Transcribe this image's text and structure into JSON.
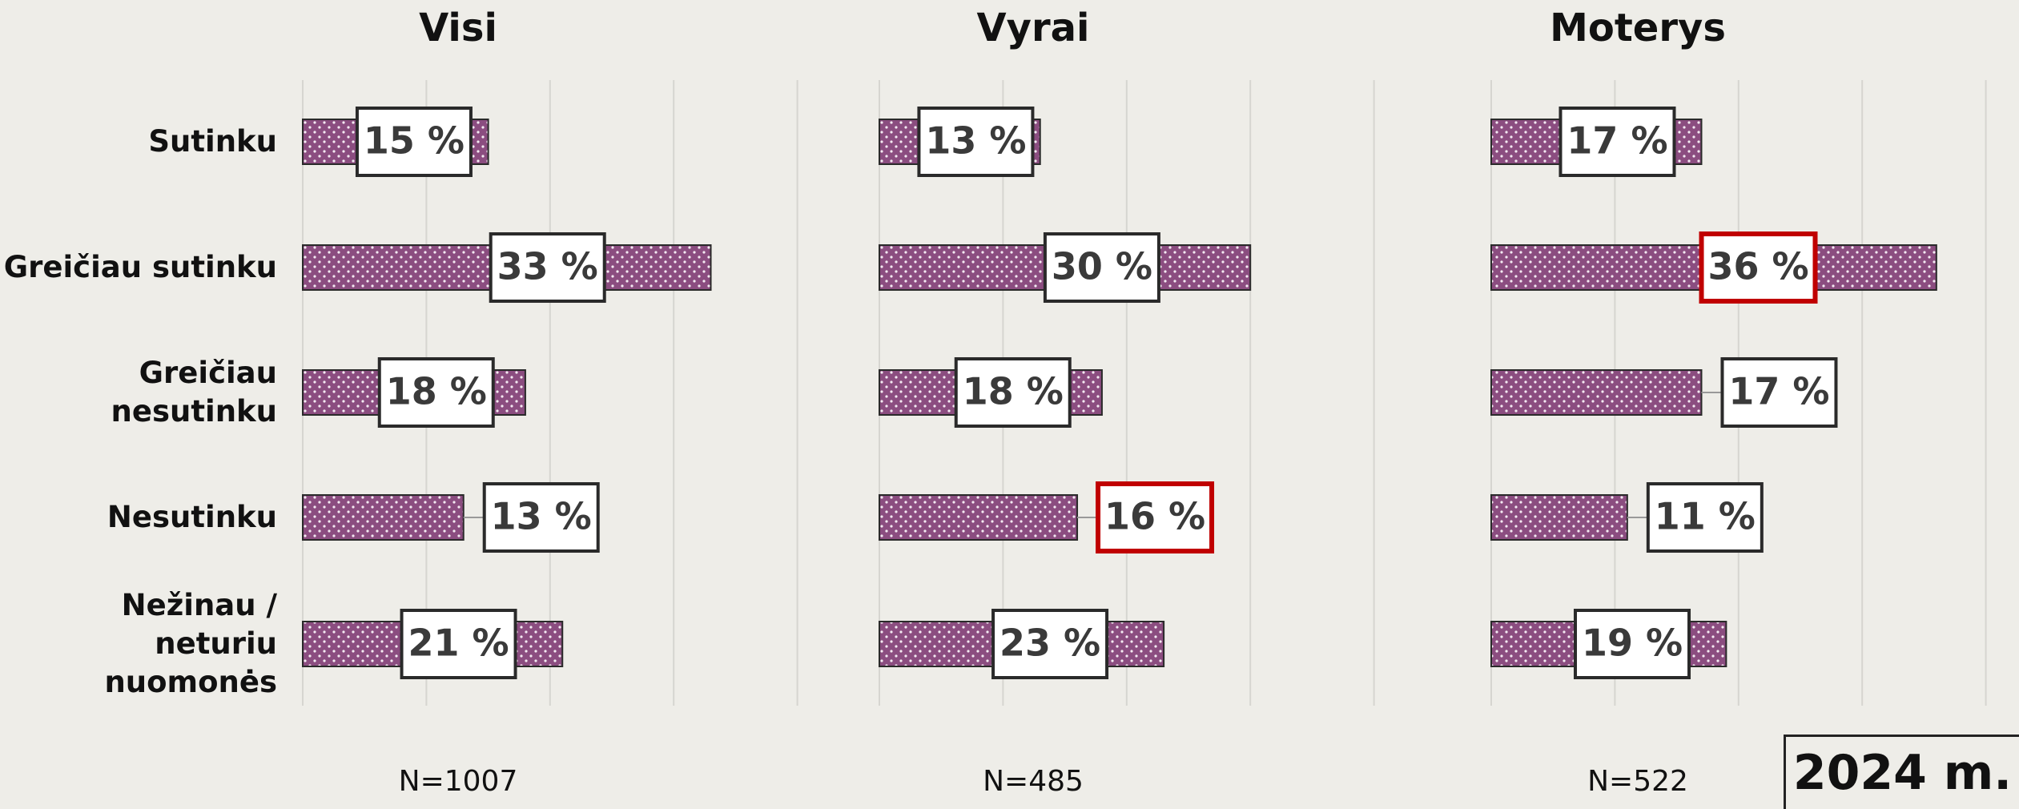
{
  "chart_data": [
    {
      "type": "bar",
      "title": "Visi",
      "note": "N=1007",
      "categories": [
        "Sutinku",
        "Greičiau sutinku",
        "Greičiau\nnesutinku",
        "Nesutinku",
        "Nežinau /\nneturiu\nnuomonės"
      ],
      "values": [
        15,
        33,
        18,
        13,
        21
      ],
      "value_labels": [
        "15 %",
        "33 %",
        "18 %",
        "13 %",
        "21 %"
      ],
      "color": "#8b4d80",
      "xlim": [
        0,
        40
      ],
      "xticks": [
        0,
        10,
        20,
        30,
        40
      ],
      "grid": true
    },
    {
      "type": "bar",
      "title": "Vyrai",
      "note": "N=485",
      "values": [
        13,
        30,
        18,
        16,
        23
      ],
      "value_labels": [
        "13 %",
        "30 %",
        "18 %",
        "16 %",
        "23 %"
      ],
      "color": "#8b4d80",
      "xlim": [
        0,
        40
      ],
      "xticks": [
        0,
        10,
        20,
        30,
        40
      ],
      "grid": true,
      "highlight": 3
    },
    {
      "type": "bar",
      "title": "Moterys",
      "note": "N=522",
      "values": [
        17,
        36,
        17,
        11,
        19
      ],
      "value_labels": [
        "17 %",
        "36 %",
        "17 %",
        "11 %",
        "19 %"
      ],
      "color": "#8b4d80",
      "xlim": [
        0,
        40
      ],
      "xticks": [
        0,
        10,
        20,
        30,
        40
      ],
      "grid": true,
      "highlight": 1
    }
  ],
  "badge": "2024 m."
}
